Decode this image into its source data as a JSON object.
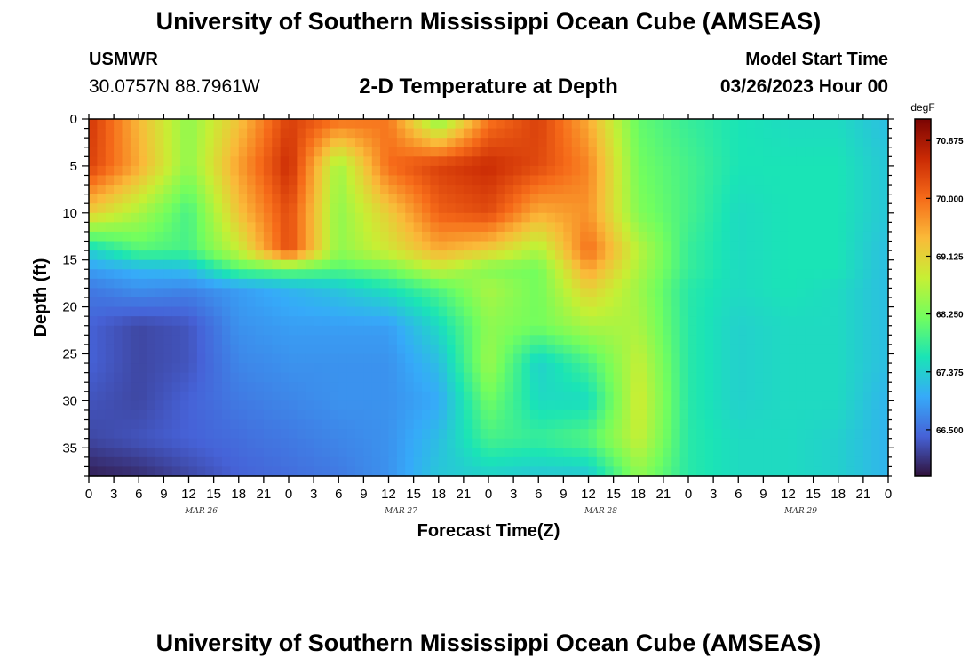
{
  "header": {
    "title": "University of Southern Mississippi Ocean Cube (AMSEAS)",
    "station": "USMWR",
    "coordinates": "30.0757N  88.7961W",
    "subtitle": "2-D Temperature at Depth",
    "start_label": "Model Start Time",
    "start_value": "03/26/2023 Hour 00",
    "bottom_title": "University of Southern Mississippi Ocean Cube (AMSEAS)"
  },
  "chart_data": {
    "type": "heatmap",
    "title": "2-D Temperature at Depth",
    "xlabel": "Forecast Time(Z)",
    "ylabel": "Depth (ft)",
    "x_hours": [
      0,
      6,
      12,
      18,
      24,
      30,
      36,
      42,
      48,
      54,
      60,
      66,
      72,
      78,
      84,
      90,
      96
    ],
    "y_depths_ft": [
      0,
      5,
      10,
      14,
      16,
      18,
      22,
      26,
      30,
      34,
      38
    ],
    "z_degF": [
      [
        70.5,
        69.4,
        68.4,
        69.3,
        70.4,
        70.0,
        69.9,
        68.3,
        69.9,
        70.4,
        69.5,
        68.1,
        67.8,
        67.6,
        67.5,
        67.5,
        67.2
      ],
      [
        70.4,
        69.5,
        68.4,
        69.6,
        70.6,
        68.5,
        70.0,
        70.4,
        70.6,
        70.3,
        69.8,
        68.2,
        67.9,
        67.6,
        67.6,
        67.6,
        67.3
      ],
      [
        69.2,
        68.6,
        67.9,
        69.3,
        70.3,
        68.4,
        69.2,
        70.1,
        70.3,
        69.5,
        69.7,
        68.3,
        67.9,
        67.5,
        67.6,
        67.6,
        67.3
      ],
      [
        67.4,
        68.0,
        67.9,
        68.8,
        70.3,
        68.4,
        68.9,
        69.5,
        69.2,
        68.6,
        70.0,
        68.7,
        67.8,
        67.5,
        67.6,
        67.6,
        67.2
      ],
      [
        66.9,
        67.1,
        67.2,
        68.0,
        68.2,
        68.0,
        68.2,
        68.8,
        68.3,
        68.2,
        69.6,
        68.6,
        67.8,
        67.5,
        67.6,
        67.6,
        67.2
      ],
      [
        66.6,
        66.8,
        66.7,
        66.9,
        67.1,
        67.3,
        67.6,
        68.0,
        68.6,
        68.2,
        69.2,
        68.5,
        67.7,
        67.5,
        67.6,
        67.5,
        67.2
      ],
      [
        66.4,
        66.2,
        66.3,
        66.8,
        66.9,
        66.9,
        66.9,
        67.5,
        68.4,
        68.2,
        68.6,
        68.6,
        67.7,
        67.4,
        67.5,
        67.5,
        67.2
      ],
      [
        66.4,
        66.2,
        66.3,
        66.7,
        66.8,
        66.8,
        66.8,
        67.2,
        68.5,
        67.4,
        67.9,
        68.8,
        67.7,
        67.4,
        67.5,
        67.5,
        67.2
      ],
      [
        66.3,
        66.2,
        66.4,
        66.6,
        66.7,
        66.8,
        66.8,
        67.0,
        68.2,
        67.5,
        67.5,
        68.9,
        67.7,
        67.4,
        67.5,
        67.5,
        67.1
      ],
      [
        66.2,
        66.3,
        66.4,
        66.5,
        66.6,
        66.7,
        66.8,
        67.2,
        67.9,
        67.8,
        68.0,
        68.8,
        67.7,
        67.5,
        67.5,
        67.4,
        67.1
      ],
      [
        65.9,
        66.0,
        66.2,
        66.4,
        66.5,
        66.6,
        66.8,
        67.3,
        67.4,
        67.3,
        67.3,
        68.4,
        67.7,
        67.5,
        67.5,
        67.4,
        67.1
      ]
    ],
    "xlim": [
      0,
      96
    ],
    "ylim": [
      38,
      0
    ],
    "x_tick_labels": [
      "0",
      "3",
      "6",
      "9",
      "12",
      "15",
      "18",
      "21",
      "0",
      "3",
      "6",
      "9",
      "12",
      "15",
      "18",
      "21",
      "0",
      "3",
      "6",
      "9",
      "12",
      "15",
      "18",
      "21",
      "0",
      "3",
      "6",
      "9",
      "12",
      "15",
      "18",
      "21",
      "0"
    ],
    "y_tick_labels": [
      "0",
      "5",
      "10",
      "15",
      "20",
      "25",
      "30",
      "35"
    ],
    "y_ticks": [
      0,
      5,
      10,
      15,
      20,
      25,
      30,
      35
    ],
    "day_labels": [
      "MAR 26",
      "MAR 27",
      "MAR 28",
      "MAR 29"
    ],
    "colorbar": {
      "unit": "degF",
      "vmin": 65.8,
      "vmax": 71.2,
      "ticks": [
        70.875,
        70.0,
        69.125,
        68.25,
        67.375,
        66.5
      ],
      "tick_labels": [
        "70.875",
        "70.000",
        "69.125",
        "68.250",
        "67.375",
        "66.500"
      ],
      "colors": [
        "#30123b",
        "#4662d7",
        "#36aaf9",
        "#1ae4b6",
        "#72fe5e",
        "#c7ef34",
        "#faba39",
        "#f66b19",
        "#ca2a04",
        "#7a0403"
      ]
    }
  }
}
